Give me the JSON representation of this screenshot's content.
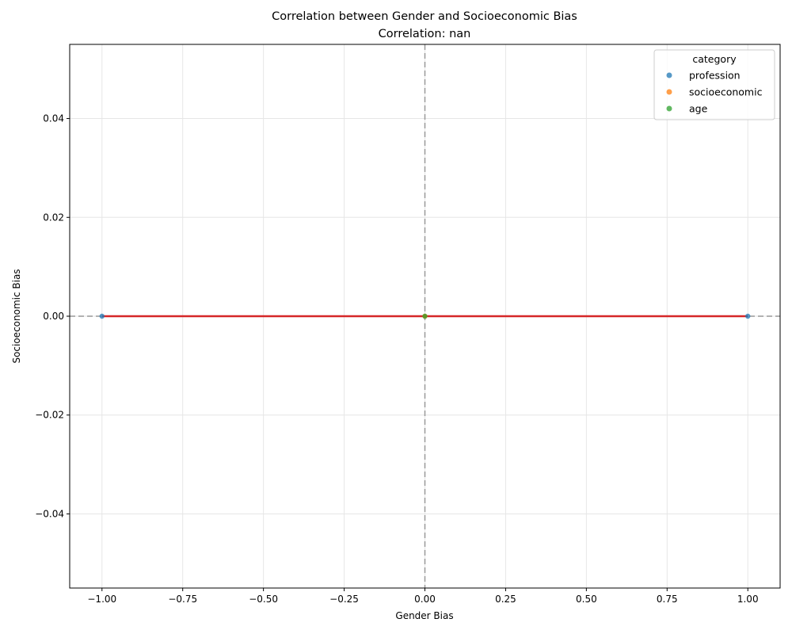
{
  "chart_data": {
    "type": "scatter",
    "title": "Correlation between Gender and Socioeconomic Bias",
    "subtitle": "Correlation: nan",
    "xlabel": "Gender Bias",
    "ylabel": "Socioeconomic Bias",
    "xlim": [
      -1.1,
      1.1
    ],
    "ylim": [
      -0.055,
      0.055
    ],
    "xticks": [
      -1.0,
      -0.75,
      -0.5,
      -0.25,
      0.0,
      0.25,
      0.5,
      0.75,
      1.0
    ],
    "xtick_labels": [
      "−1.00",
      "−0.75",
      "−0.50",
      "−0.25",
      "0.00",
      "0.25",
      "0.50",
      "0.75",
      "1.00"
    ],
    "yticks": [
      -0.04,
      -0.02,
      0.0,
      0.02,
      0.04
    ],
    "ytick_labels": [
      "−0.04",
      "−0.02",
      "0.00",
      "0.02",
      "0.04"
    ],
    "grid": true,
    "legend": {
      "title": "category",
      "placement": "top-right"
    },
    "series": [
      {
        "name": "profession",
        "color": "#1f77b4",
        "points": [
          [
            -1.0,
            0.0
          ],
          [
            1.0,
            0.0
          ]
        ]
      },
      {
        "name": "socioeconomic",
        "color": "#ff7f0e",
        "points": [
          [
            0.0,
            0.0
          ]
        ]
      },
      {
        "name": "age",
        "color": "#2ca02c",
        "points": [
          [
            0.0,
            0.0
          ]
        ]
      }
    ],
    "regression_line": {
      "color": "#d62728",
      "x": [
        -1.0,
        1.0
      ],
      "y": [
        0.0,
        0.0
      ]
    },
    "reference_lines": {
      "color": "#999999",
      "x": 0.0,
      "y": 0.0
    }
  }
}
